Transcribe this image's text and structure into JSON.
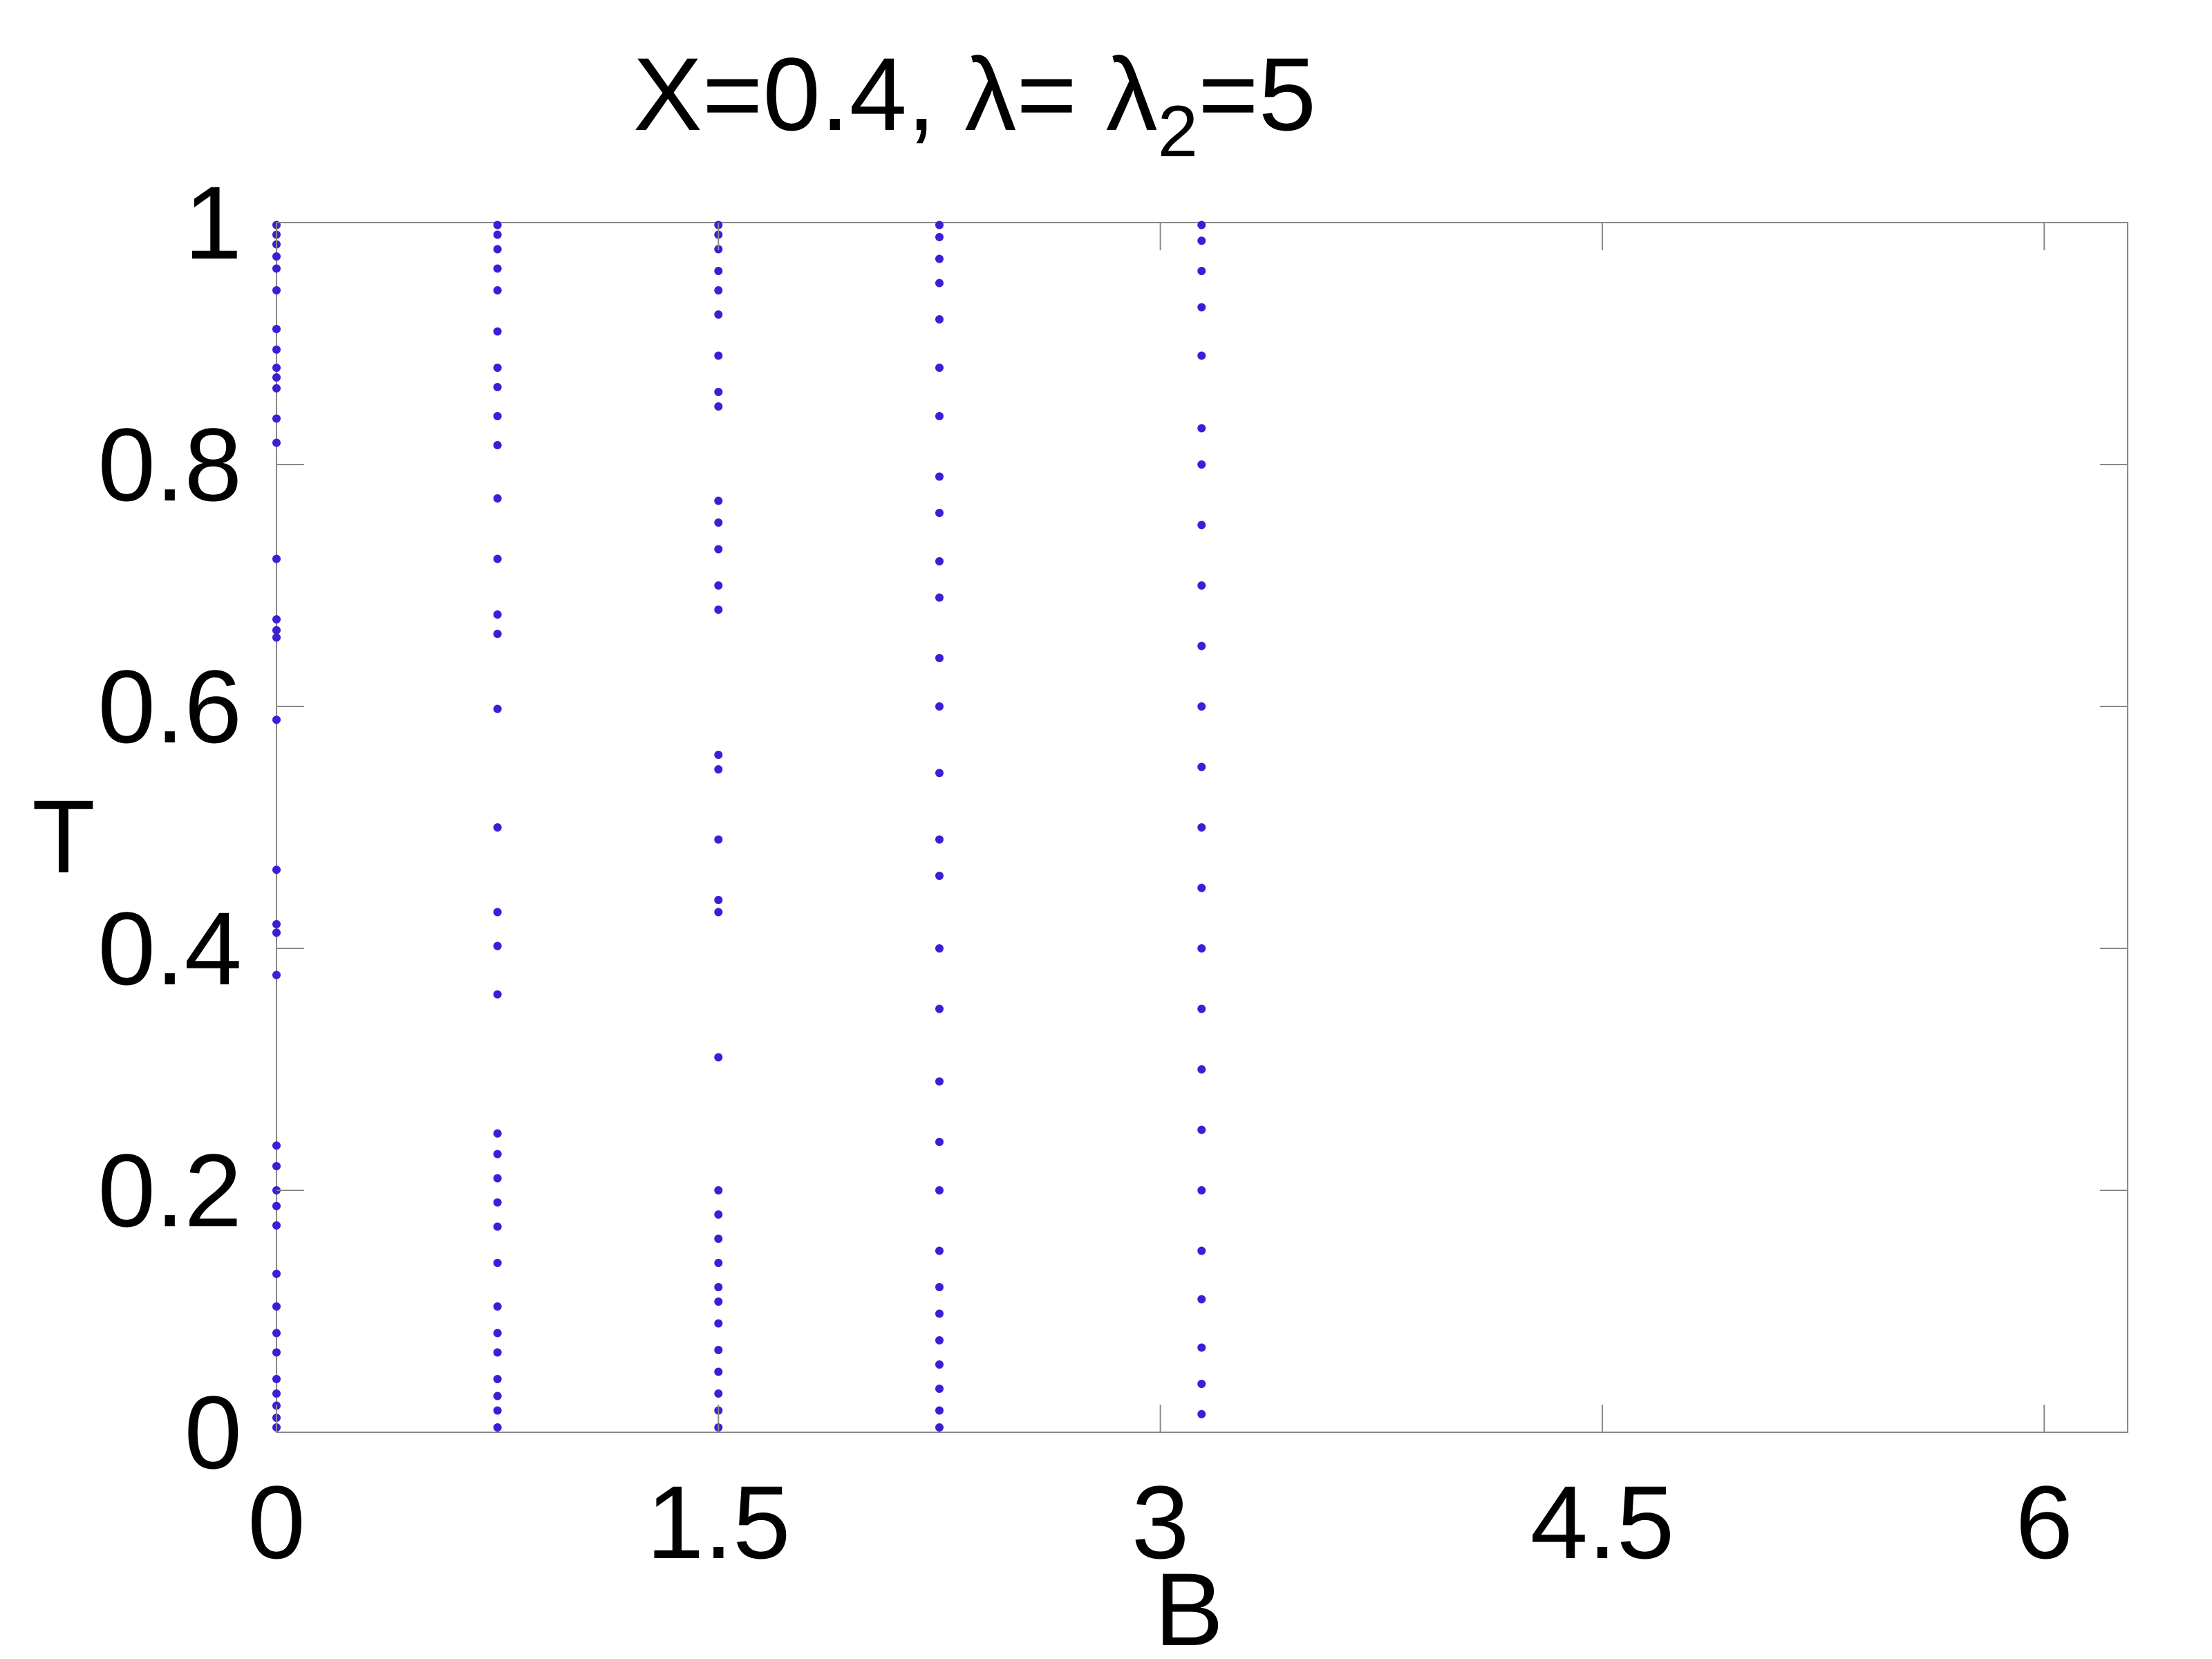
{
  "chart_data": {
    "type": "scatter",
    "title": {
      "prefix": "X=0.4, λ= λ",
      "subscript": "2",
      "suffix": "=5"
    },
    "xlabel": "B",
    "ylabel": "T",
    "xlim": [
      0,
      6.2832
    ],
    "ylim": [
      0,
      1
    ],
    "xticks": [
      {
        "value": 0,
        "label": "0"
      },
      {
        "value": 1.5,
        "label": "1.5"
      },
      {
        "value": 3,
        "label": "3"
      },
      {
        "value": 4.5,
        "label": "4.5"
      },
      {
        "value": 6,
        "label": "6"
      }
    ],
    "yticks": [
      {
        "value": 0,
        "label": "0"
      },
      {
        "value": 0.2,
        "label": "0.2"
      },
      {
        "value": 0.4,
        "label": "0.4"
      },
      {
        "value": 0.6,
        "label": "0.6"
      },
      {
        "value": 0.8,
        "label": "0.8"
      },
      {
        "value": 1,
        "label": "1"
      }
    ],
    "grid": false,
    "series": [
      {
        "color": "#3a1fd6",
        "description_of_sampling": "B sampled uniformly from 0 to 2π (approximately 0.0314 step); symmetric about B = π",
        "points": [
          [
            0.0,
            0.998
          ],
          [
            0.0,
            0.99
          ],
          [
            0.0,
            0.982
          ],
          [
            0.0,
            0.972
          ],
          [
            0.0,
            0.962
          ],
          [
            0.0,
            0.944
          ],
          [
            0.0,
            0.912
          ],
          [
            0.0,
            0.895
          ],
          [
            0.0,
            0.88
          ],
          [
            0.0,
            0.872
          ],
          [
            0.0,
            0.863
          ],
          [
            0.0,
            0.838
          ],
          [
            0.0,
            0.818
          ],
          [
            0.0,
            0.722
          ],
          [
            0.0,
            0.672
          ],
          [
            0.0,
            0.663
          ],
          [
            0.0,
            0.657
          ],
          [
            0.0,
            0.589
          ],
          [
            0.0,
            0.465
          ],
          [
            0.0,
            0.42
          ],
          [
            0.0,
            0.413
          ],
          [
            0.0,
            0.378
          ],
          [
            0.0,
            0.237
          ],
          [
            0.0,
            0.22
          ],
          [
            0.0,
            0.2
          ],
          [
            0.0,
            0.187
          ],
          [
            0.0,
            0.171
          ],
          [
            0.0,
            0.131
          ],
          [
            0.0,
            0.104
          ],
          [
            0.0,
            0.082
          ],
          [
            0.0,
            0.066
          ],
          [
            0.0,
            0.044
          ],
          [
            0.0,
            0.032
          ],
          [
            0.0,
            0.022
          ],
          [
            0.0,
            0.012
          ],
          [
            0.0,
            0.004
          ],
          [
            0.75,
            0.998
          ],
          [
            0.75,
            0.99
          ],
          [
            0.75,
            0.978
          ],
          [
            0.75,
            0.962
          ],
          [
            0.75,
            0.944
          ],
          [
            0.75,
            0.91
          ],
          [
            0.75,
            0.88
          ],
          [
            0.75,
            0.864
          ],
          [
            0.75,
            0.84
          ],
          [
            0.75,
            0.816
          ],
          [
            0.75,
            0.772
          ],
          [
            0.75,
            0.722
          ],
          [
            0.75,
            0.676
          ],
          [
            0.75,
            0.66
          ],
          [
            0.75,
            0.598
          ],
          [
            0.75,
            0.5
          ],
          [
            0.75,
            0.43
          ],
          [
            0.75,
            0.402
          ],
          [
            0.75,
            0.362
          ],
          [
            0.75,
            0.247
          ],
          [
            0.75,
            0.23
          ],
          [
            0.75,
            0.21
          ],
          [
            0.75,
            0.19
          ],
          [
            0.75,
            0.17
          ],
          [
            0.75,
            0.14
          ],
          [
            0.75,
            0.104
          ],
          [
            0.75,
            0.082
          ],
          [
            0.75,
            0.066
          ],
          [
            0.75,
            0.044
          ],
          [
            0.75,
            0.03
          ],
          [
            0.75,
            0.018
          ],
          [
            0.75,
            0.004
          ],
          [
            1.5,
            0.998
          ],
          [
            1.5,
            0.99
          ],
          [
            1.5,
            0.978
          ],
          [
            1.5,
            0.96
          ],
          [
            1.5,
            0.944
          ],
          [
            1.5,
            0.924
          ],
          [
            1.5,
            0.89
          ],
          [
            1.5,
            0.86
          ],
          [
            1.5,
            0.848
          ],
          [
            1.5,
            0.77
          ],
          [
            1.5,
            0.752
          ],
          [
            1.5,
            0.73
          ],
          [
            1.5,
            0.7
          ],
          [
            1.5,
            0.68
          ],
          [
            1.5,
            0.56
          ],
          [
            1.5,
            0.548
          ],
          [
            1.5,
            0.49
          ],
          [
            1.5,
            0.44
          ],
          [
            1.5,
            0.43
          ],
          [
            1.5,
            0.31
          ],
          [
            1.5,
            0.2
          ],
          [
            1.5,
            0.18
          ],
          [
            1.5,
            0.16
          ],
          [
            1.5,
            0.14
          ],
          [
            1.5,
            0.12
          ],
          [
            1.5,
            0.108
          ],
          [
            1.5,
            0.09
          ],
          [
            1.5,
            0.068
          ],
          [
            1.5,
            0.05
          ],
          [
            1.5,
            0.032
          ],
          [
            1.5,
            0.018
          ],
          [
            1.5,
            0.004
          ],
          [
            2.25,
            0.998
          ],
          [
            2.25,
            0.988
          ],
          [
            2.25,
            0.97
          ],
          [
            2.25,
            0.95
          ],
          [
            2.25,
            0.92
          ],
          [
            2.25,
            0.88
          ],
          [
            2.25,
            0.84
          ],
          [
            2.25,
            0.79
          ],
          [
            2.25,
            0.76
          ],
          [
            2.25,
            0.72
          ],
          [
            2.25,
            0.69
          ],
          [
            2.25,
            0.64
          ],
          [
            2.25,
            0.6
          ],
          [
            2.25,
            0.545
          ],
          [
            2.25,
            0.49
          ],
          [
            2.25,
            0.46
          ],
          [
            2.25,
            0.4
          ],
          [
            2.25,
            0.35
          ],
          [
            2.25,
            0.29
          ],
          [
            2.25,
            0.24
          ],
          [
            2.25,
            0.2
          ],
          [
            2.25,
            0.15
          ],
          [
            2.25,
            0.12
          ],
          [
            2.25,
            0.098
          ],
          [
            2.25,
            0.076
          ],
          [
            2.25,
            0.056
          ],
          [
            2.25,
            0.036
          ],
          [
            2.25,
            0.018
          ],
          [
            2.25,
            0.004
          ],
          [
            3.14,
            0.998
          ],
          [
            3.14,
            0.985
          ],
          [
            3.14,
            0.96
          ],
          [
            3.14,
            0.93
          ],
          [
            3.14,
            0.89
          ],
          [
            3.14,
            0.83
          ],
          [
            3.14,
            0.8
          ],
          [
            3.14,
            0.75
          ],
          [
            3.14,
            0.7
          ],
          [
            3.14,
            0.65
          ],
          [
            3.14,
            0.6
          ],
          [
            3.14,
            0.55
          ],
          [
            3.14,
            0.5
          ],
          [
            3.14,
            0.45
          ],
          [
            3.14,
            0.4
          ],
          [
            3.14,
            0.35
          ],
          [
            3.14,
            0.3
          ],
          [
            3.14,
            0.25
          ],
          [
            3.14,
            0.2
          ],
          [
            3.14,
            0.15
          ],
          [
            3.14,
            0.11
          ],
          [
            3.14,
            0.07
          ],
          [
            3.14,
            0.04
          ],
          [
            3.14,
            0.015
          ]
        ]
      }
    ]
  }
}
